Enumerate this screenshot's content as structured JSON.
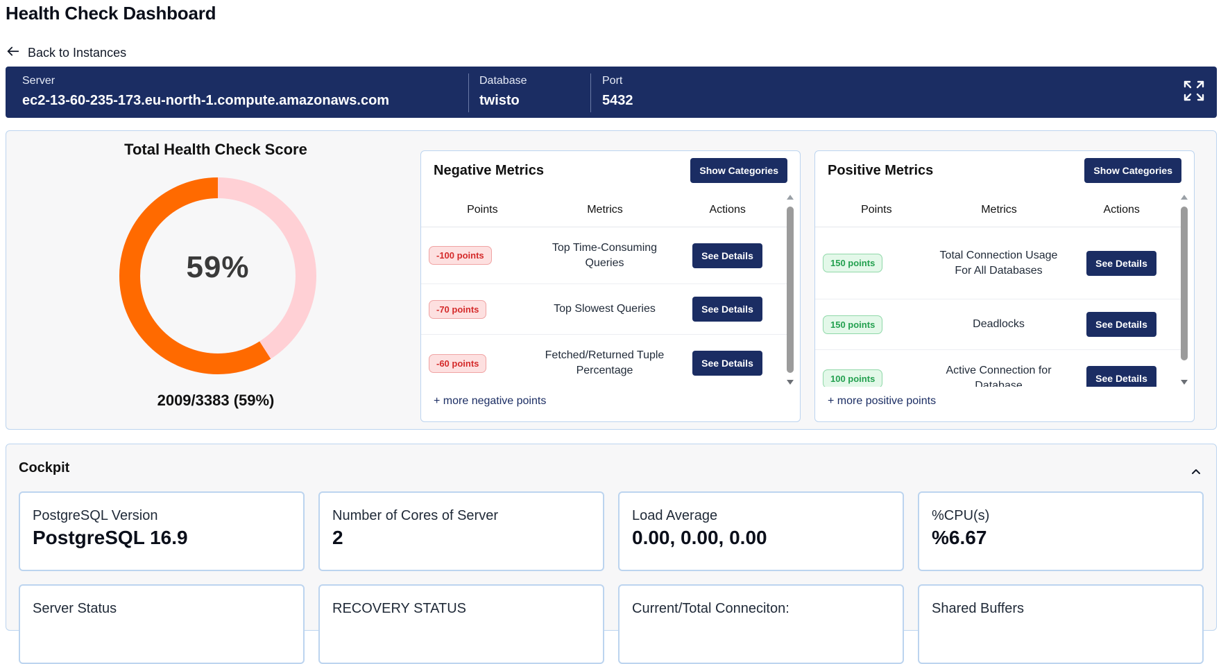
{
  "page": {
    "title": "Health Check Dashboard",
    "back_label": "Back to Instances"
  },
  "server_bar": {
    "server_label": "Server",
    "server_value": "ec2-13-60-235-173.eu-north-1.compute.amazonaws.com",
    "database_label": "Database",
    "database_value": "twisto",
    "port_label": "Port",
    "port_value": "5432",
    "background_color": "#1b2d63"
  },
  "score": {
    "title": "Total Health Check Score",
    "percent_label": "59%",
    "percent": 59,
    "summary": "2009/3383 (59%)",
    "filled_color": "#ff6a00",
    "remaining_color": "#ffd0d5"
  },
  "negative_metrics": {
    "title": "Negative Metrics",
    "show_categories_label": "Show Categories",
    "columns": [
      "Points",
      "Metrics",
      "Actions"
    ],
    "rows": [
      {
        "points": "-100 points",
        "metric": "Top Time-Consuming Queries",
        "action": "See Details"
      },
      {
        "points": "-70 points",
        "metric": "Top Slowest Queries",
        "action": "See Details"
      },
      {
        "points": "-60 points",
        "metric": "Fetched/Returned Tuple Percentage",
        "action": "See Details"
      }
    ],
    "more_label": "+ more negative points"
  },
  "positive_metrics": {
    "title": "Positive Metrics",
    "show_categories_label": "Show Categories",
    "columns": [
      "Points",
      "Metrics",
      "Actions"
    ],
    "rows": [
      {
        "points": "150 points",
        "metric": "Total Connection Usage For All Databases",
        "action": "See Details"
      },
      {
        "points": "150 points",
        "metric": "Deadlocks",
        "action": "See Details"
      },
      {
        "points": "100 points",
        "metric": "Active Connection for Database",
        "action": "See Details"
      }
    ],
    "more_label": "+ more positive points"
  },
  "cockpit": {
    "title": "Cockpit",
    "cards": [
      {
        "label": "PostgreSQL Version",
        "value": "PostgreSQL 16.9"
      },
      {
        "label": "Number of Cores of Server",
        "value": "2"
      },
      {
        "label": "Load Average",
        "value": "0.00, 0.00, 0.00"
      },
      {
        "label": "%CPU(s)",
        "value": "%6.67"
      },
      {
        "label": "Server Status",
        "value": ""
      },
      {
        "label": "RECOVERY STATUS",
        "value": ""
      },
      {
        "label": "Current/Total Conneciton:",
        "value": ""
      },
      {
        "label": "Shared Buffers",
        "value": ""
      }
    ]
  },
  "icons": {
    "back": "arrow-left-icon",
    "expand": "expand-icon",
    "collapse": "chevron-up-icon"
  }
}
